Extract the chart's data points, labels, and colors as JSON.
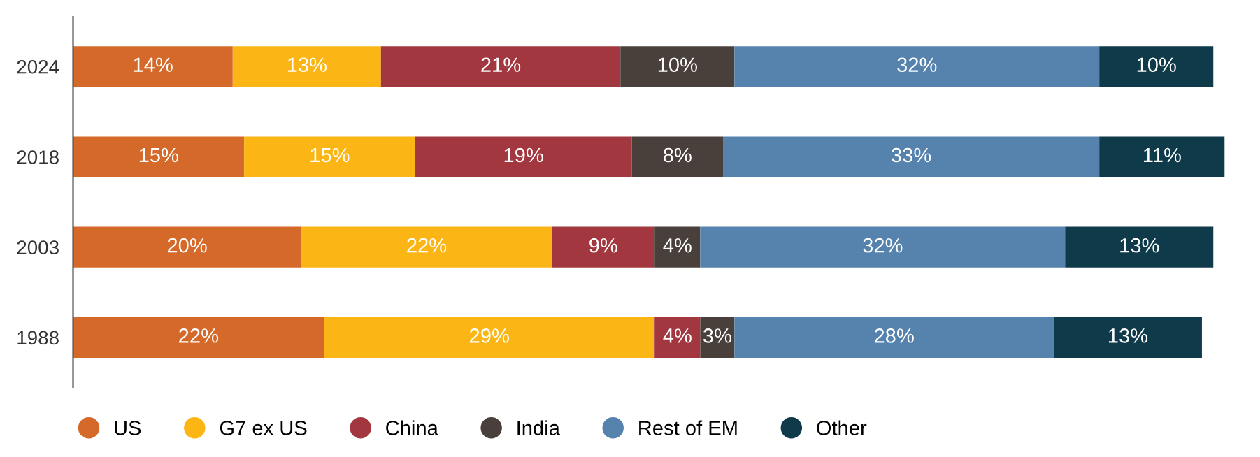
{
  "chart_data": {
    "type": "bar",
    "orientation": "horizontal",
    "stacked": true,
    "categories": [
      "2024",
      "2018",
      "2003",
      "1988"
    ],
    "series": [
      {
        "name": "US",
        "color": "#d4692a",
        "values": [
          14,
          15,
          20,
          22
        ],
        "value_labels": [
          "14%",
          "15%",
          "20%",
          "22%"
        ]
      },
      {
        "name": "G7 ex US",
        "color": "#fbb615",
        "values": [
          13,
          15,
          22,
          29
        ],
        "value_labels": [
          "13%",
          "15%",
          "22%",
          "29%"
        ]
      },
      {
        "name": "China",
        "color": "#a3373f",
        "values": [
          21,
          19,
          9,
          4
        ],
        "value_labels": [
          "21%",
          "19%",
          "9%",
          "4%"
        ]
      },
      {
        "name": "India",
        "color": "#4a403b",
        "values": [
          10,
          8,
          4,
          3
        ],
        "value_labels": [
          "10%",
          "8%",
          "4%",
          "3%"
        ]
      },
      {
        "name": "Rest of EM",
        "color": "#5583ae",
        "values": [
          32,
          33,
          32,
          28
        ],
        "value_labels": [
          "32%",
          "33%",
          "32%",
          "28%"
        ]
      },
      {
        "name": "Other",
        "color": "#0e3a49",
        "values": [
          10,
          11,
          13,
          13
        ],
        "value_labels": [
          "10%",
          "11%",
          "13%",
          "13%"
        ]
      }
    ],
    "xlim": [
      0,
      101
    ],
    "tick_labels": "y",
    "legend": "bottom",
    "marker": "circle",
    "grid": false
  }
}
